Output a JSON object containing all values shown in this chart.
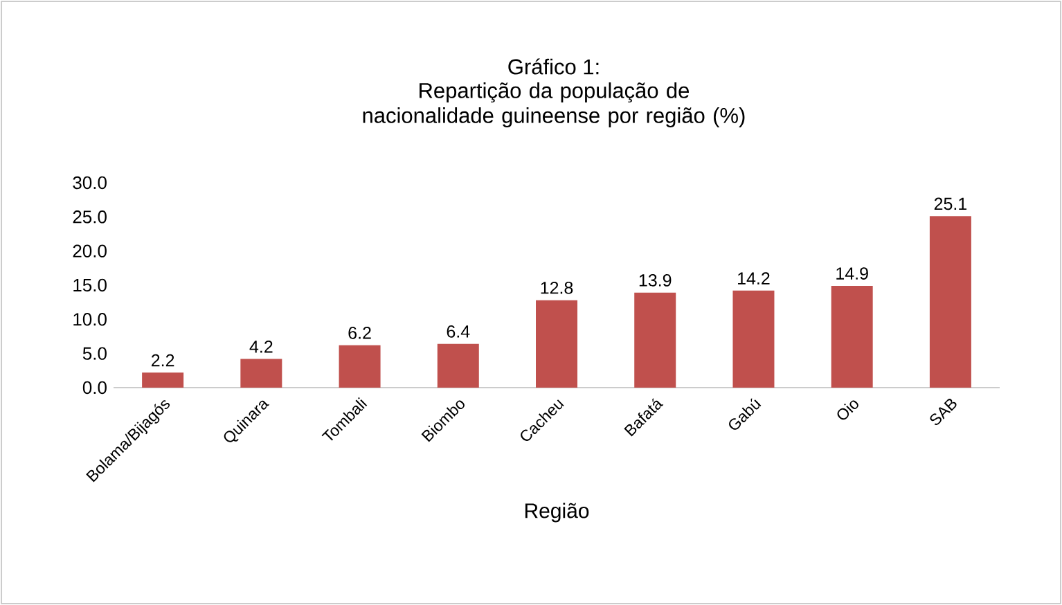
{
  "chart_data": {
    "type": "bar",
    "title": "Gráfico 1:",
    "subtitle": "Repartição da população de nacionalidade guineense por região (%)",
    "xlabel": "Região",
    "categories": [
      "Bolama/Bijagós",
      "Quinara",
      "Tombali",
      "Biombo",
      "Cacheu",
      "Bafatá",
      "Gabú",
      "Oio",
      "SAB"
    ],
    "values": [
      2.2,
      4.2,
      6.2,
      6.4,
      12.8,
      13.9,
      14.2,
      14.9,
      25.1
    ],
    "color": "#c0504d",
    "ylim": [
      0,
      30
    ],
    "yticks": [
      {
        "value": 0,
        "label": "0.0"
      },
      {
        "value": 5,
        "label": "5.0"
      },
      {
        "value": 10,
        "label": "10.0"
      },
      {
        "value": 15,
        "label": "15.0"
      },
      {
        "value": 20,
        "label": "20.0"
      },
      {
        "value": 25,
        "label": "25.0"
      },
      {
        "value": 30,
        "label": "30.0"
      }
    ],
    "data_labels": true,
    "grid": false
  }
}
